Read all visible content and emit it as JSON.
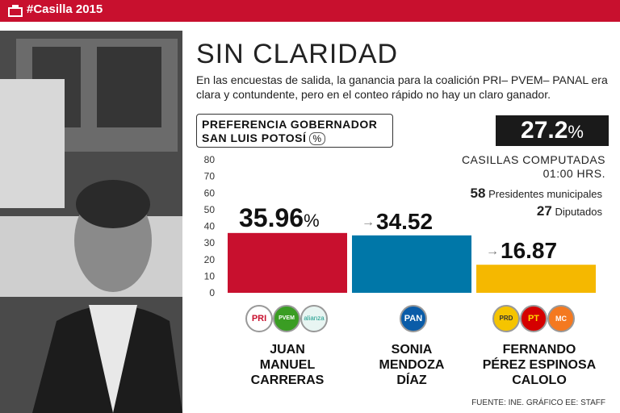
{
  "header": {
    "tag": "#Casilla 2015"
  },
  "title": "SIN CLARIDAD",
  "subtitle": "En las encuestas de salida, la ganancia para la coalición PRI– PVEM– PANAL era clara y contundente, pero en el conteo rápido no hay un claro ganador.",
  "chart_label": {
    "line1": "PREFERENCIA GOBERNADOR",
    "line2": "SAN LUIS POTOSÍ",
    "unit": "%"
  },
  "counted": {
    "percent": "27.2",
    "percent_sign": "%",
    "label1": "CASILLAS COMPUTADAS",
    "label2": "01:00 HRS."
  },
  "stats": [
    {
      "num": "58",
      "label": "Presidentes municipales"
    },
    {
      "num": "27",
      "label": "Diputados"
    }
  ],
  "candidates": [
    {
      "line1": "JUAN",
      "line2": "MANUEL",
      "line3": "CARRERAS"
    },
    {
      "line1": "SONIA",
      "line2": "MENDOZA",
      "line3": "DÍAZ"
    },
    {
      "line1": "FERNANDO",
      "line2": "PÉREZ ESPINOSA",
      "line3": "CALOLO"
    }
  ],
  "party_logos": {
    "c1": [
      "PRI",
      "PVEM",
      "alianza"
    ],
    "c2": [
      "PAN"
    ],
    "c3": [
      "PRD",
      "PT",
      "MC"
    ]
  },
  "footer": "FUENTE: INE. GRÁFICO EE: STAFF",
  "chart_data": {
    "type": "bar",
    "title": "PREFERENCIA GOBERNADOR SAN LUIS POTOSÍ (%)",
    "categories": [
      "Juan Manuel Carreras",
      "Sonia Mendoza Díaz",
      "Fernando Pérez Espinosa Calolo"
    ],
    "values": [
      35.96,
      34.52,
      16.87
    ],
    "labels": [
      "35.96",
      "34.52",
      "16.87"
    ],
    "label_suffix": [
      "%",
      "",
      ""
    ],
    "colors": [
      "#c8102e",
      "#0077a8",
      "#f5b800"
    ],
    "yticks": [
      0,
      10,
      20,
      30,
      40,
      50,
      60,
      70,
      80
    ],
    "ylim": [
      0,
      80
    ],
    "xlabel": "",
    "ylabel": ""
  }
}
